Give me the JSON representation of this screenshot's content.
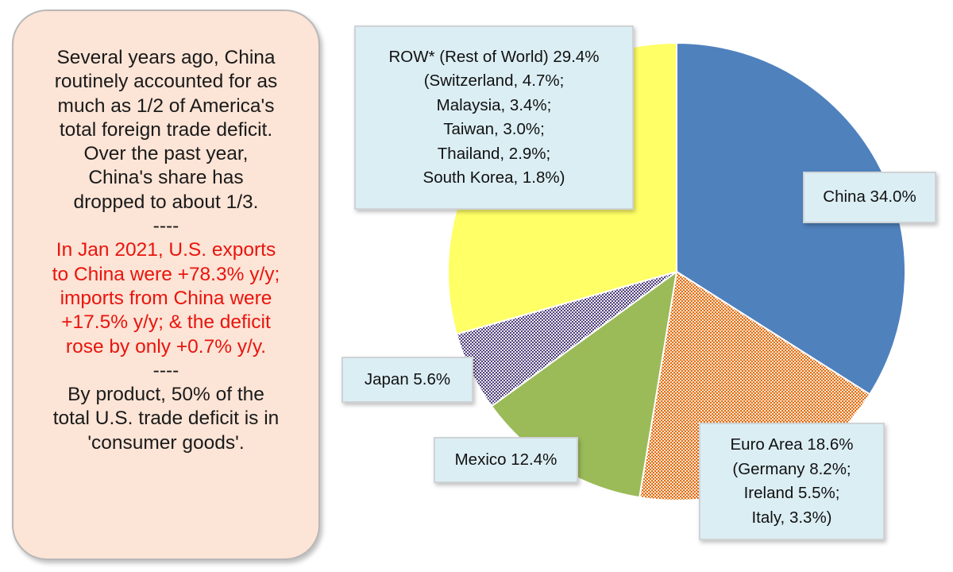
{
  "notes": [
    {
      "text": "Several years ago, China",
      "color": "#1a1a1a"
    },
    {
      "text": "routinely accounted for as",
      "color": "#1a1a1a"
    },
    {
      "text": "much as 1/2 of America's",
      "color": "#1a1a1a"
    },
    {
      "text": "total foreign trade deficit.",
      "color": "#1a1a1a"
    },
    {
      "text": "Over the past year,",
      "color": "#1a1a1a"
    },
    {
      "text": "China's share has",
      "color": "#1a1a1a"
    },
    {
      "text": "dropped  to about 1/3.",
      "color": "#1a1a1a"
    },
    {
      "text": "----",
      "color": "#1a1a1a"
    },
    {
      "text": "In Jan 2021, U.S. exports",
      "color": "#e8150e"
    },
    {
      "text": "to China were +78.3% y/y;",
      "color": "#e8150e"
    },
    {
      "text": "imports from China were",
      "color": "#e8150e"
    },
    {
      "text": "+17.5% y/y; & the deficit",
      "color": "#e8150e"
    },
    {
      "text": "rose by only +0.7% y/y.",
      "color": "#e8150e"
    },
    {
      "text": "----",
      "color": "#1a1a1a"
    },
    {
      "text": "By product, 50% of the",
      "color": "#1a1a1a"
    },
    {
      "text": "total U.S. trade deficit is in",
      "color": "#1a1a1a"
    },
    {
      "text": "'consumer goods'.",
      "color": "#1a1a1a"
    }
  ],
  "chart_data": {
    "type": "pie",
    "start_angle_deg": 0,
    "direction": "clockwise",
    "slices": [
      {
        "name": "China",
        "value": 34.0,
        "color": "#4f81bd",
        "pattern": "solid",
        "label_lines": [
          "China 34.0%"
        ]
      },
      {
        "name": "Euro Area",
        "value": 18.6,
        "color": "#e46c0a",
        "pattern": "dots",
        "label_lines": [
          "Euro Area 18.6%",
          "(Germany 8.2%;",
          "Ireland 5.5%;",
          "Italy, 3.3%)"
        ]
      },
      {
        "name": "Mexico",
        "value": 12.4,
        "color": "#9bbb59",
        "pattern": "solid",
        "label_lines": [
          "Mexico 12.4%"
        ]
      },
      {
        "name": "Japan",
        "value": 5.6,
        "color": "#5a4a8a",
        "pattern": "dots",
        "label_lines": [
          "Japan 5.6%"
        ]
      },
      {
        "name": "ROW*",
        "value": 29.4,
        "color": "#ffff66",
        "pattern": "solid",
        "label_lines": [
          "ROW* (Rest of World) 29.4%",
          "(Switzerland, 4.7%;",
          "Malaysia, 3.4%;",
          "Taiwan, 3.0%;",
          "Thailand, 2.9%;",
          "South Korea, 1.8%)"
        ]
      }
    ]
  }
}
